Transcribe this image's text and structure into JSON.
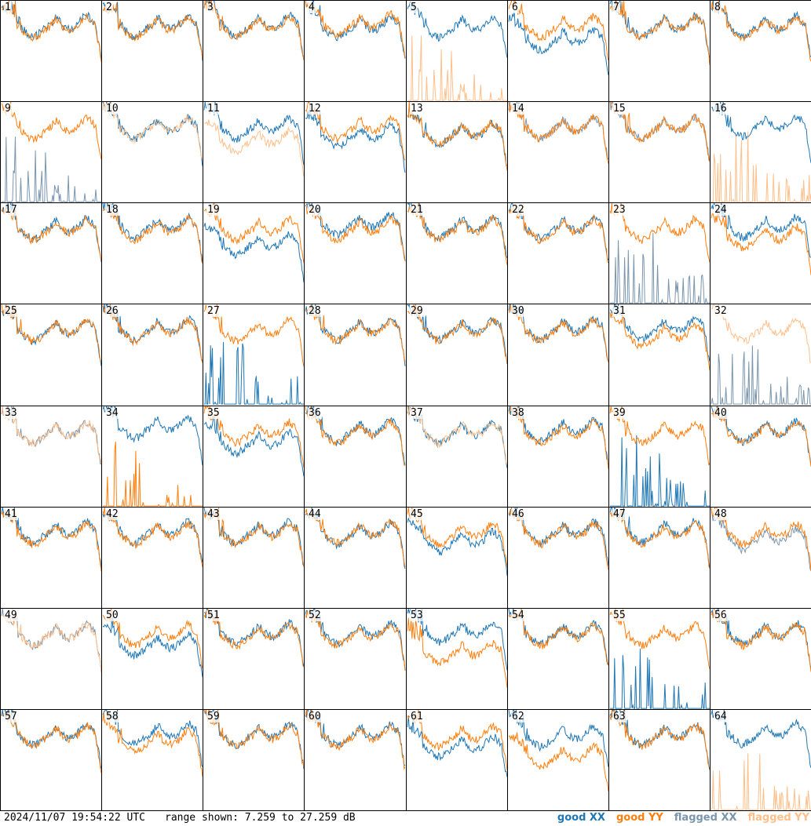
{
  "footer": {
    "timestamp": "2024/11/07 19:54:22 UTC",
    "range_text": "range shown: 7.259 to 27.259 dB"
  },
  "legend": [
    {
      "label": "good XX",
      "color": "#1f77b4"
    },
    {
      "label": "good YY",
      "color": "#ff7f0e"
    },
    {
      "label": "flagged XX",
      "color": "#7a96ae"
    },
    {
      "label": "flagged YY",
      "color": "#ffbf8a"
    }
  ],
  "chart_data": {
    "type": "line",
    "panels": 64,
    "layout": "8x8 grid",
    "y_range_db": [
      7.259,
      27.259
    ],
    "x_axis": "frequency channel (unlabelled)",
    "panel_labels": [
      "1",
      "2",
      "3",
      "4",
      "5",
      "6",
      "7",
      "8",
      "9",
      "10",
      "11",
      "12",
      "13",
      "14",
      "15",
      "16",
      "17",
      "18",
      "19",
      "20",
      "21",
      "22",
      "23",
      "24",
      "25",
      "26",
      "27",
      "28",
      "29",
      "30",
      "31",
      "32",
      "33",
      "34",
      "35",
      "36",
      "37",
      "38",
      "39",
      "40",
      "41",
      "42",
      "43",
      "44",
      "45",
      "46",
      "47",
      "48",
      "49",
      "50",
      "51",
      "52",
      "53",
      "54",
      "55",
      "56",
      "57",
      "58",
      "59",
      "60",
      "61",
      "62",
      "63",
      "64"
    ],
    "series": [
      {
        "name": "good XX",
        "color": "#1f77b4"
      },
      {
        "name": "good YY",
        "color": "#ff7f0e"
      },
      {
        "name": "flagged XX",
        "color": "#7a96ae"
      },
      {
        "name": "flagged YY",
        "color": "#ffbf8a"
      }
    ],
    "panel_traces": [
      {
        "xx": "good",
        "yy": "good",
        "xxOff": 0.3,
        "yyOff": 0.0
      },
      {
        "xx": "good",
        "yy": "good",
        "xxOff": 0.2,
        "yyOff": 0.0
      },
      {
        "xx": "good",
        "yy": "good",
        "xxOff": 0.3,
        "yyOff": 0.0
      },
      {
        "xx": "good",
        "yy": "good",
        "xxOff": 0.0,
        "yyOff": 0.5
      },
      {
        "xx": "good",
        "yy": "flaggedSpikes",
        "xxOff": 0.0,
        "yyOff": 0.0
      },
      {
        "xx": "good",
        "yy": "good",
        "xxOff": -2.5,
        "yyOff": 0.0
      },
      {
        "xx": "good",
        "yy": "good",
        "xxOff": 0.2,
        "yyOff": 0.0
      },
      {
        "xx": "good",
        "yy": "good",
        "xxOff": 0.2,
        "yyOff": 0.0
      },
      {
        "xx": "flaggedSpikes",
        "yy": "good",
        "xxOff": 0.0,
        "yyOff": 0.0
      },
      {
        "xx": "good",
        "yy": "flagged",
        "xxOff": 0.0,
        "yyOff": 0.0
      },
      {
        "xx": "good",
        "yy": "flagged",
        "xxOff": 0.0,
        "yyOff": -2.5
      },
      {
        "xx": "good",
        "yy": "good",
        "xxOff": -1.5,
        "yyOff": 0.0
      },
      {
        "xx": "good",
        "yy": "good",
        "xxOff": -1.0,
        "yyOff": -1.0
      },
      {
        "xx": "flagged",
        "yy": "good",
        "xxOff": 0.0,
        "yyOff": 0.0
      },
      {
        "xx": "flagged",
        "yy": "good",
        "xxOff": 0.0,
        "yyOff": 0.0
      },
      {
        "xx": "good",
        "yy": "flaggedSpikes",
        "xxOff": 0.5,
        "yyOff": 0.0
      },
      {
        "xx": "good",
        "yy": "good",
        "xxOff": 0.2,
        "yyOff": 0.0
      },
      {
        "xx": "good",
        "yy": "good",
        "xxOff": 0.5,
        "yyOff": 0.0
      },
      {
        "xx": "good",
        "yy": "good",
        "xxOff": -3.0,
        "yyOff": 0.0
      },
      {
        "xx": "good",
        "yy": "good",
        "xxOff": 1.0,
        "yyOff": 0.0
      },
      {
        "xx": "good",
        "yy": "good",
        "xxOff": 0.5,
        "yyOff": 0.0
      },
      {
        "xx": "good",
        "yy": "good",
        "xxOff": 0.3,
        "yyOff": 0.0
      },
      {
        "xx": "flaggedSpikes",
        "yy": "good",
        "xxOff": 0.0,
        "yyOff": 0.0
      },
      {
        "xx": "good",
        "yy": "good",
        "xxOff": 0.5,
        "yyOff": -1.5
      },
      {
        "xx": "good",
        "yy": "good",
        "xxOff": 0.0,
        "yyOff": 0.0
      },
      {
        "xx": "good",
        "yy": "good",
        "xxOff": 0.3,
        "yyOff": 0.0
      },
      {
        "xx": "goodSpikes",
        "yy": "good",
        "xxOff": -3.0,
        "yyOff": 0.0
      },
      {
        "xx": "good",
        "yy": "good",
        "xxOff": 0.3,
        "yyOff": 0.0
      },
      {
        "xx": "good",
        "yy": "good",
        "xxOff": 0.3,
        "yyOff": 0.0
      },
      {
        "xx": "good",
        "yy": "good",
        "xxOff": 0.3,
        "yyOff": 0.0
      },
      {
        "xx": "good",
        "yy": "good",
        "xxOff": 0.5,
        "yyOff": -1.0
      },
      {
        "xx": "flaggedSpikes",
        "yy": "flagged",
        "xxOff": 0.0,
        "yyOff": 0.0
      },
      {
        "xx": "flagged",
        "yy": "flagged",
        "xxOff": 0.0,
        "yyOff": 0.0
      },
      {
        "xx": "good",
        "yy": "goodSpikes",
        "xxOff": 1.0,
        "yyOff": 0.0
      },
      {
        "xx": "good",
        "yy": "good",
        "xxOff": -2.0,
        "yyOff": 0.0
      },
      {
        "xx": "good",
        "yy": "good",
        "xxOff": 0.3,
        "yyOff": 0.0
      },
      {
        "xx": "good",
        "yy": "flagged",
        "xxOff": 0.0,
        "yyOff": 0.0
      },
      {
        "xx": "good",
        "yy": "good",
        "xxOff": 0.5,
        "yyOff": 0.0
      },
      {
        "xx": "goodSpikes",
        "yy": "good",
        "xxOff": 0.0,
        "yyOff": 0.0
      },
      {
        "xx": "good",
        "yy": "good",
        "xxOff": 0.3,
        "yyOff": 0.0
      },
      {
        "xx": "good",
        "yy": "good",
        "xxOff": 0.3,
        "yyOff": 0.0
      },
      {
        "xx": "good",
        "yy": "good",
        "xxOff": 0.3,
        "yyOff": 0.0
      },
      {
        "xx": "good",
        "yy": "good",
        "xxOff": 0.3,
        "yyOff": 0.0
      },
      {
        "xx": "good",
        "yy": "good",
        "xxOff": 0.0,
        "yyOff": 0.3
      },
      {
        "xx": "good",
        "yy": "good",
        "xxOff": -1.5,
        "yyOff": 0.0
      },
      {
        "xx": "good",
        "yy": "good",
        "xxOff": 0.3,
        "yyOff": 0.0
      },
      {
        "xx": "good",
        "yy": "good",
        "xxOff": 0.5,
        "yyOff": 0.0
      },
      {
        "xx": "flagged",
        "yy": "good",
        "xxOff": -1.0,
        "yyOff": 0.0
      },
      {
        "xx": "flagged",
        "yy": "flagged",
        "xxOff": 0.0,
        "yyOff": 0.0
      },
      {
        "xx": "good",
        "yy": "good",
        "xxOff": -2.0,
        "yyOff": 0.0
      },
      {
        "xx": "good",
        "yy": "good",
        "xxOff": 0.3,
        "yyOff": 0.0
      },
      {
        "xx": "good",
        "yy": "good",
        "xxOff": 0.3,
        "yyOff": 0.0
      },
      {
        "xx": "good",
        "yy": "good",
        "xxOff": 0.5,
        "yyOff": -3.5
      },
      {
        "xx": "good",
        "yy": "good",
        "xxOff": 0.3,
        "yyOff": 0.0
      },
      {
        "xx": "goodSpikes",
        "yy": "good",
        "xxOff": 0.0,
        "yyOff": 0.0
      },
      {
        "xx": "good",
        "yy": "good",
        "xxOff": 0.3,
        "yyOff": 0.0
      },
      {
        "xx": "good",
        "yy": "good",
        "xxOff": 0.3,
        "yyOff": 0.0
      },
      {
        "xx": "good",
        "yy": "good",
        "xxOff": 0.5,
        "yyOff": -1.0
      },
      {
        "xx": "good",
        "yy": "good",
        "xxOff": 0.3,
        "yyOff": 0.0
      },
      {
        "xx": "good",
        "yy": "good",
        "xxOff": 0.3,
        "yyOff": 0.0
      },
      {
        "xx": "good",
        "yy": "good",
        "xxOff": -2.0,
        "yyOff": 0.0
      },
      {
        "xx": "good",
        "yy": "good",
        "xxOff": 0.0,
        "yyOff": -4.0
      },
      {
        "xx": "good",
        "yy": "good",
        "xxOff": 0.3,
        "yyOff": 0.0
      },
      {
        "xx": "good",
        "yy": "flaggedSpikes",
        "xxOff": 0.5,
        "yyOff": 0.0
      }
    ]
  }
}
